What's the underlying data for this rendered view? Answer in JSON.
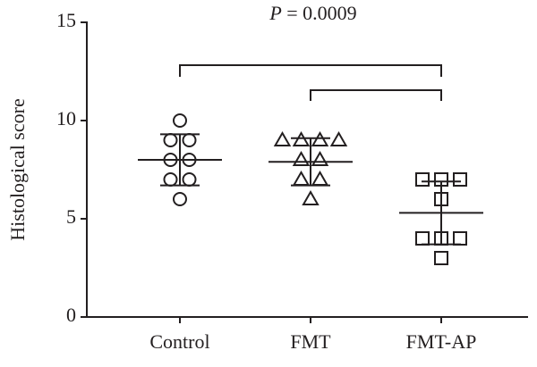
{
  "chart_data": {
    "type": "scatter",
    "y_label": "Histological score",
    "annotation_symbol": "P",
    "annotation_text": "= 0.0009",
    "categories": [
      "Control",
      "FMT",
      "FMT-AP"
    ],
    "ylim": [
      0,
      15
    ],
    "yticks": [
      0,
      5,
      10,
      15
    ],
    "series": [
      {
        "name": "Control",
        "marker": "circle",
        "color": "#231f20",
        "values": [
          10,
          9,
          9,
          8,
          8,
          7,
          7,
          6
        ],
        "mean": 8.0,
        "sd": 1.3
      },
      {
        "name": "FMT",
        "marker": "triangle",
        "color": "#231f20",
        "values": [
          9,
          9,
          9,
          9,
          8,
          8,
          7,
          7,
          6
        ],
        "mean": 7.9,
        "sd": 1.2
      },
      {
        "name": "FMT-AP",
        "marker": "square",
        "color": "#231f20",
        "values": [
          7,
          7,
          7,
          6,
          4,
          4,
          4,
          3
        ],
        "mean": 5.3,
        "sd": 1.6
      }
    ]
  }
}
